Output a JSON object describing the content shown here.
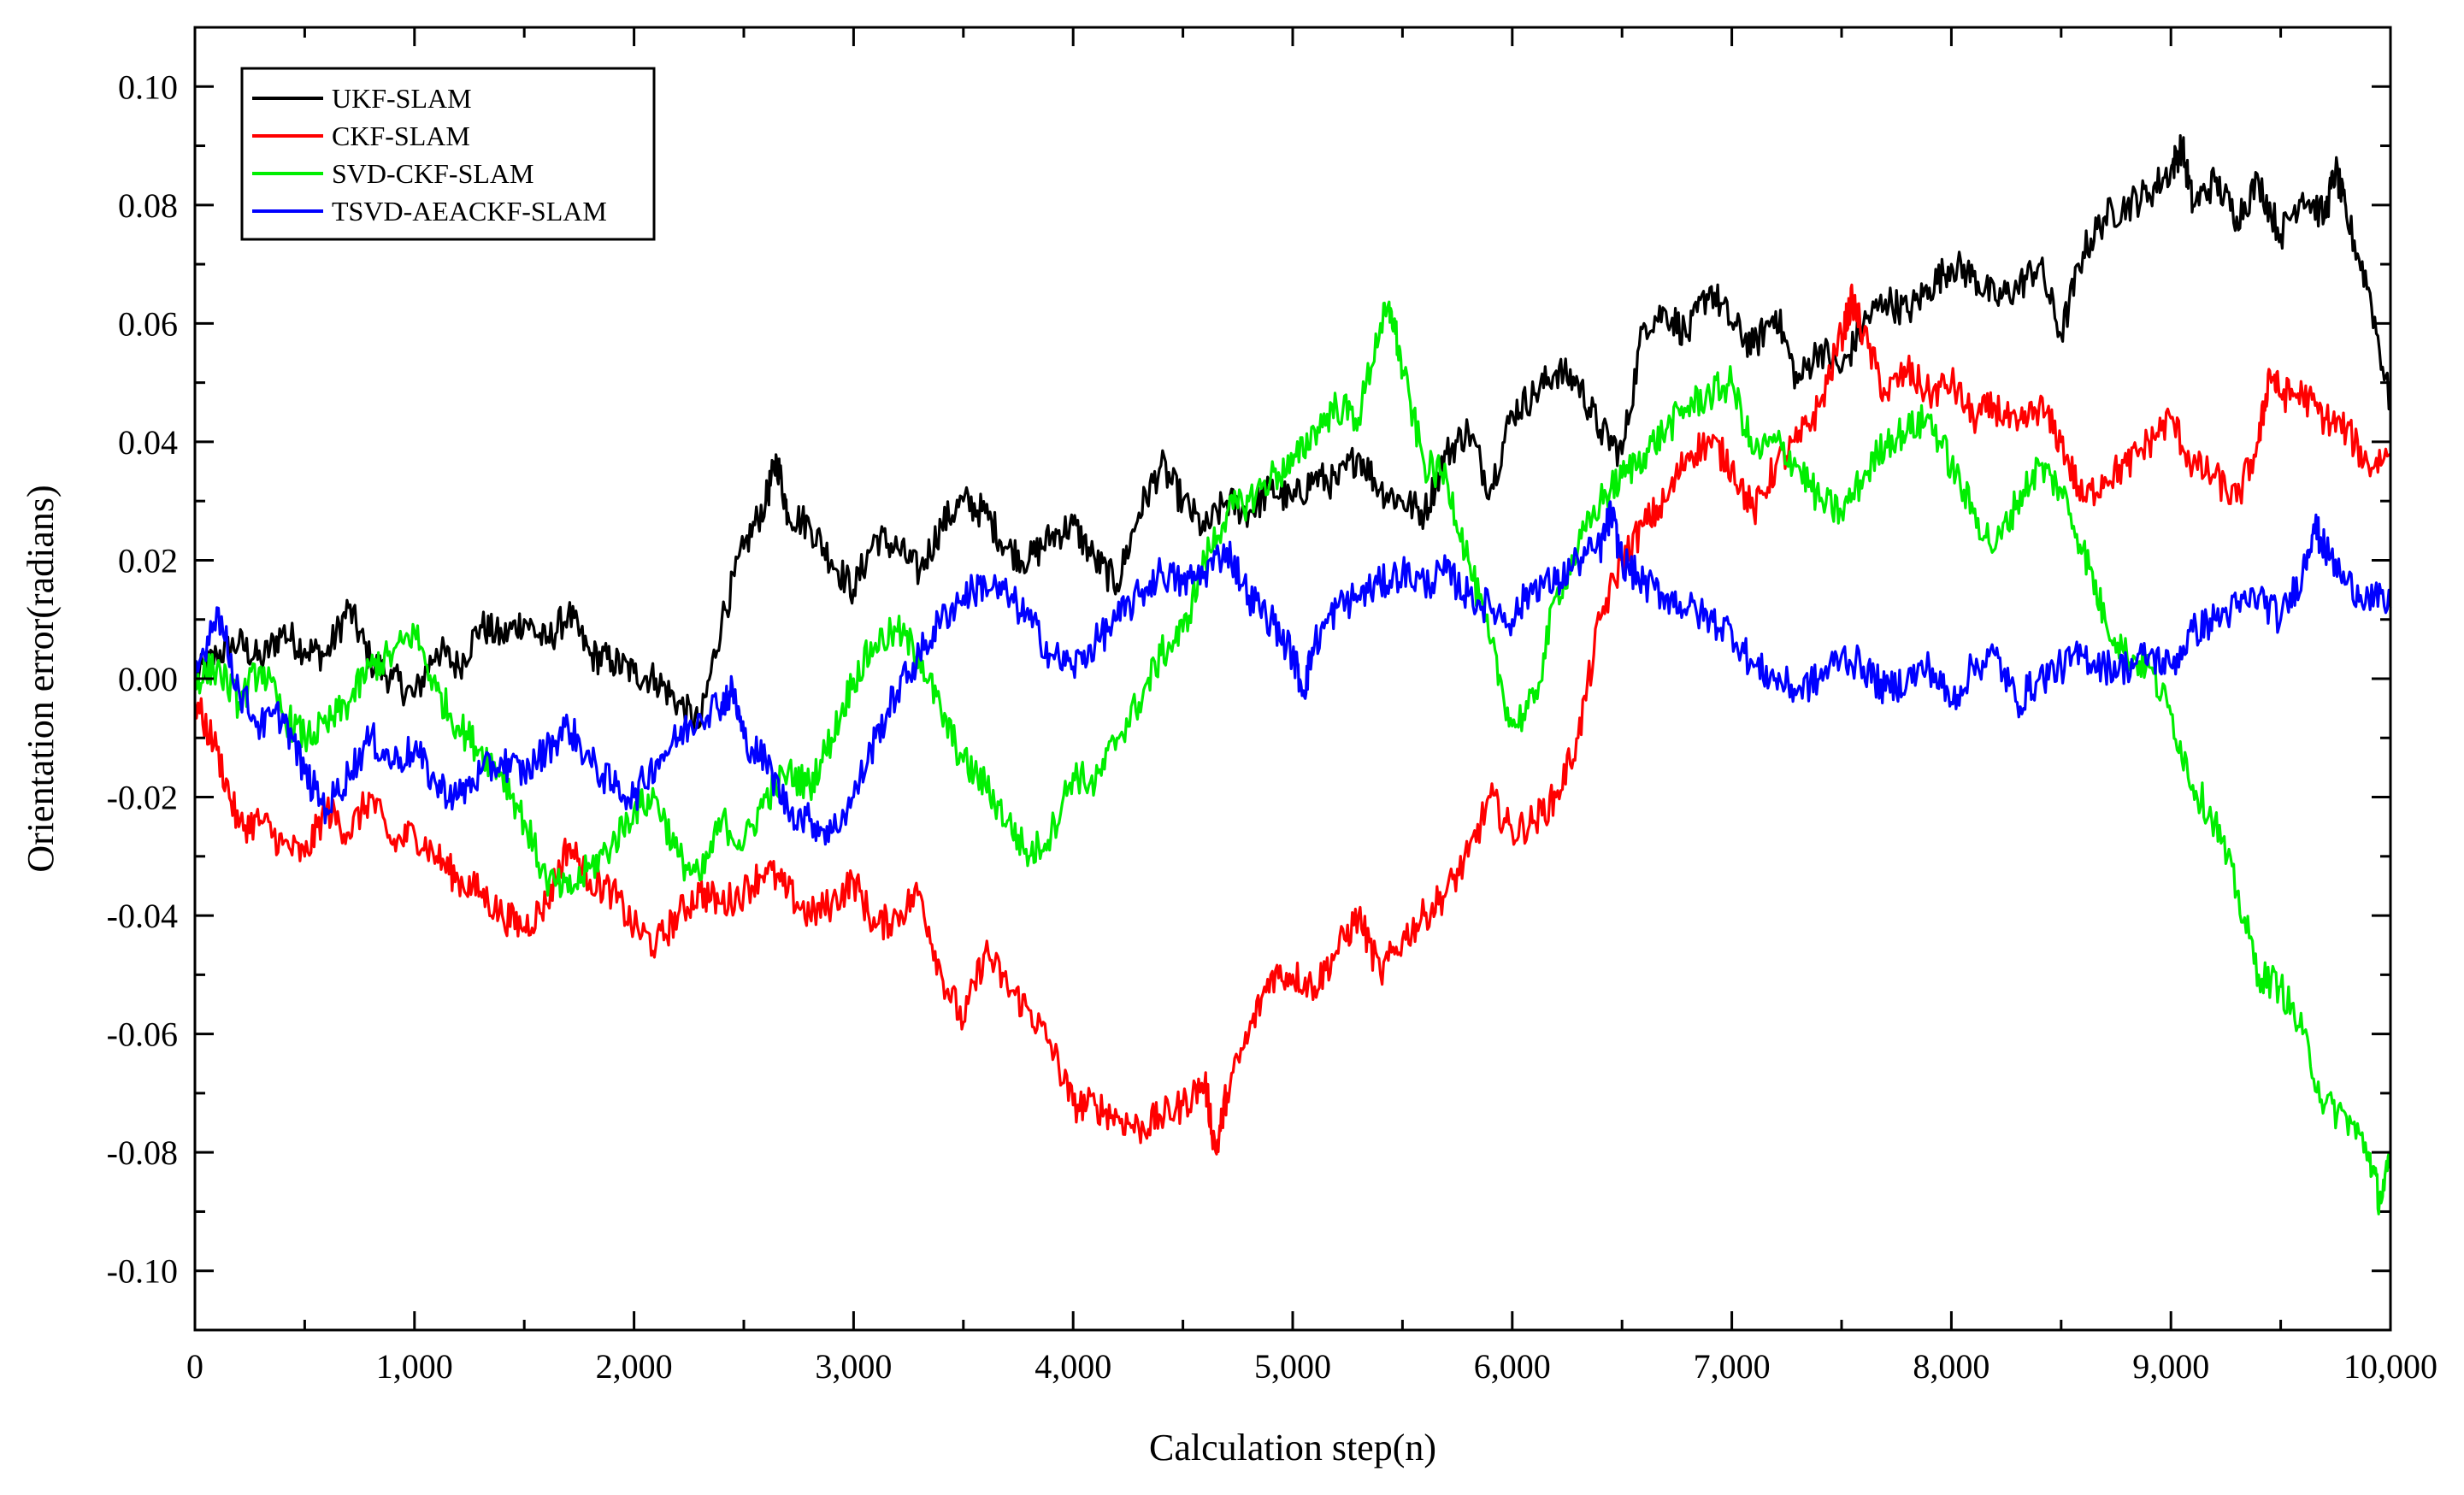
{
  "chart_data": {
    "type": "line",
    "title": "",
    "xlabel": "Calculation step(n)",
    "ylabel": "Orientation error(radians)",
    "xlim": [
      0,
      10000
    ],
    "ylim": [
      -0.11,
      0.11
    ],
    "xticks": [
      0,
      1000,
      2000,
      3000,
      4000,
      5000,
      6000,
      7000,
      8000,
      9000,
      10000
    ],
    "xtick_labels": [
      "0",
      "1,000",
      "2,000",
      "3,000",
      "4,000",
      "5,000",
      "6,000",
      "7,000",
      "8,000",
      "9,000",
      "10,000"
    ],
    "yticks": [
      -0.1,
      -0.08,
      -0.06,
      -0.04,
      -0.02,
      0.0,
      0.02,
      0.04,
      0.06,
      0.08,
      0.1
    ],
    "ytick_labels": [
      "-0.10",
      "-0.08",
      "-0.06",
      "-0.04",
      "-0.02",
      "0.00",
      "0.02",
      "0.04",
      "0.06",
      "0.08",
      "0.10"
    ],
    "grid": false,
    "legend_position": "top-left",
    "series": [
      {
        "name": "UKF-SLAM",
        "color": "#000000",
        "x": [
          0,
          100,
          200,
          300,
          400,
          500,
          600,
          700,
          800,
          900,
          1000,
          1100,
          1200,
          1300,
          1400,
          1500,
          1600,
          1700,
          1800,
          1900,
          2000,
          2100,
          2200,
          2300,
          2400,
          2500,
          2600,
          2650,
          2700,
          2800,
          2900,
          3000,
          3100,
          3200,
          3300,
          3400,
          3500,
          3600,
          3700,
          3800,
          3900,
          4000,
          4100,
          4200,
          4300,
          4400,
          4500,
          4600,
          4700,
          4800,
          4900,
          5000,
          5100,
          5200,
          5300,
          5400,
          5500,
          5600,
          5700,
          5800,
          5900,
          6000,
          6100,
          6200,
          6300,
          6400,
          6500,
          6600,
          6700,
          6800,
          6900,
          7000,
          7100,
          7200,
          7300,
          7400,
          7500,
          7600,
          7700,
          7800,
          7900,
          8000,
          8100,
          8200,
          8300,
          8400,
          8500,
          8600,
          8700,
          8800,
          8900,
          9000,
          9050,
          9100,
          9200,
          9300,
          9400,
          9500,
          9600,
          9700,
          9750,
          9800,
          9900,
          10000
        ],
        "values": [
          0.0,
          0.004,
          0.006,
          0.003,
          0.008,
          0.005,
          0.004,
          0.012,
          0.003,
          0.0,
          -0.003,
          0.005,
          0.002,
          0.009,
          0.007,
          0.01,
          0.006,
          0.011,
          0.004,
          0.003,
          0.001,
          0.0,
          -0.004,
          -0.008,
          0.01,
          0.022,
          0.03,
          0.037,
          0.028,
          0.026,
          0.02,
          0.015,
          0.024,
          0.022,
          0.018,
          0.026,
          0.03,
          0.028,
          0.022,
          0.02,
          0.024,
          0.026,
          0.02,
          0.016,
          0.028,
          0.036,
          0.03,
          0.025,
          0.03,
          0.028,
          0.032,
          0.03,
          0.034,
          0.033,
          0.038,
          0.032,
          0.03,
          0.028,
          0.038,
          0.042,
          0.032,
          0.045,
          0.048,
          0.052,
          0.05,
          0.042,
          0.038,
          0.06,
          0.062,
          0.058,
          0.066,
          0.06,
          0.056,
          0.062,
          0.05,
          0.056,
          0.052,
          0.06,
          0.064,
          0.062,
          0.066,
          0.07,
          0.068,
          0.064,
          0.066,
          0.07,
          0.058,
          0.072,
          0.078,
          0.08,
          0.082,
          0.086,
          0.09,
          0.08,
          0.084,
          0.078,
          0.084,
          0.075,
          0.082,
          0.078,
          0.086,
          0.078,
          0.066,
          0.046
        ]
      },
      {
        "name": "CKF-SLAM",
        "color": "#ff0000",
        "x": [
          0,
          100,
          200,
          300,
          400,
          500,
          600,
          700,
          800,
          900,
          1000,
          1100,
          1200,
          1300,
          1400,
          1500,
          1600,
          1700,
          1800,
          1900,
          2000,
          2100,
          2200,
          2300,
          2400,
          2500,
          2600,
          2700,
          2800,
          2900,
          3000,
          3100,
          3200,
          3300,
          3400,
          3500,
          3600,
          3700,
          3800,
          3900,
          4000,
          4100,
          4200,
          4300,
          4400,
          4500,
          4600,
          4650,
          4700,
          4800,
          4900,
          5000,
          5100,
          5200,
          5300,
          5400,
          5500,
          5600,
          5700,
          5800,
          5900,
          6000,
          6100,
          6200,
          6300,
          6400,
          6500,
          6600,
          6700,
          6800,
          6900,
          7000,
          7100,
          7200,
          7300,
          7400,
          7500,
          7550,
          7600,
          7700,
          7800,
          7900,
          8000,
          8100,
          8200,
          8300,
          8400,
          8500,
          8600,
          8700,
          8800,
          8900,
          9000,
          9100,
          9200,
          9300,
          9400,
          9450,
          9500,
          9600,
          9700,
          9800,
          9900,
          10000
        ],
        "values": [
          -0.004,
          -0.012,
          -0.025,
          -0.024,
          -0.028,
          -0.03,
          -0.022,
          -0.026,
          -0.02,
          -0.028,
          -0.026,
          -0.03,
          -0.034,
          -0.036,
          -0.04,
          -0.042,
          -0.038,
          -0.028,
          -0.034,
          -0.036,
          -0.042,
          -0.045,
          -0.04,
          -0.036,
          -0.038,
          -0.036,
          -0.032,
          -0.036,
          -0.04,
          -0.038,
          -0.034,
          -0.042,
          -0.04,
          -0.036,
          -0.05,
          -0.058,
          -0.046,
          -0.052,
          -0.056,
          -0.062,
          -0.072,
          -0.072,
          -0.074,
          -0.076,
          -0.074,
          -0.072,
          -0.068,
          -0.08,
          -0.07,
          -0.06,
          -0.05,
          -0.05,
          -0.052,
          -0.046,
          -0.04,
          -0.05,
          -0.044,
          -0.04,
          -0.036,
          -0.03,
          -0.02,
          -0.026,
          -0.024,
          -0.02,
          -0.01,
          0.01,
          0.02,
          0.026,
          0.03,
          0.038,
          0.04,
          0.036,
          0.028,
          0.036,
          0.04,
          0.046,
          0.058,
          0.064,
          0.058,
          0.048,
          0.052,
          0.048,
          0.05,
          0.044,
          0.046,
          0.042,
          0.046,
          0.04,
          0.03,
          0.034,
          0.036,
          0.04,
          0.044,
          0.036,
          0.034,
          0.03,
          0.04,
          0.052,
          0.048,
          0.048,
          0.044,
          0.042,
          0.036,
          0.038
        ]
      },
      {
        "name": "SVD-CKF-SLAM",
        "color": "#00ee00",
        "x": [
          0,
          100,
          200,
          300,
          400,
          500,
          600,
          700,
          800,
          900,
          1000,
          1100,
          1200,
          1300,
          1400,
          1500,
          1600,
          1700,
          1800,
          1900,
          2000,
          2100,
          2200,
          2300,
          2400,
          2500,
          2600,
          2700,
          2800,
          2900,
          3000,
          3100,
          3200,
          3300,
          3400,
          3500,
          3600,
          3700,
          3800,
          3900,
          4000,
          4100,
          4200,
          4300,
          4400,
          4500,
          4600,
          4700,
          4800,
          4900,
          5000,
          5100,
          5200,
          5300,
          5400,
          5450,
          5500,
          5600,
          5700,
          5800,
          5900,
          6000,
          6100,
          6200,
          6300,
          6400,
          6500,
          6600,
          6700,
          6800,
          6900,
          7000,
          7100,
          7200,
          7300,
          7400,
          7500,
          7600,
          7700,
          7800,
          7900,
          8000,
          8100,
          8200,
          8300,
          8400,
          8500,
          8600,
          8700,
          8800,
          8900,
          9000,
          9100,
          9200,
          9300,
          9400,
          9500,
          9600,
          9700,
          9800,
          9900,
          9950,
          10000
        ],
        "values": [
          0.0,
          0.002,
          -0.004,
          0.002,
          -0.006,
          -0.01,
          -0.008,
          -0.004,
          0.002,
          0.004,
          0.008,
          -0.002,
          -0.008,
          -0.012,
          -0.016,
          -0.024,
          -0.034,
          -0.036,
          -0.032,
          -0.028,
          -0.022,
          -0.02,
          -0.03,
          -0.034,
          -0.024,
          -0.028,
          -0.02,
          -0.016,
          -0.018,
          -0.01,
          0.0,
          0.006,
          0.008,
          0.004,
          -0.006,
          -0.014,
          -0.018,
          -0.024,
          -0.03,
          -0.026,
          -0.016,
          -0.018,
          -0.01,
          -0.004,
          0.004,
          0.008,
          0.02,
          0.028,
          0.03,
          0.034,
          0.036,
          0.042,
          0.046,
          0.044,
          0.06,
          0.062,
          0.052,
          0.036,
          0.034,
          0.02,
          0.006,
          -0.008,
          -0.004,
          0.014,
          0.022,
          0.03,
          0.034,
          0.038,
          0.042,
          0.046,
          0.048,
          0.05,
          0.038,
          0.04,
          0.036,
          0.03,
          0.028,
          0.034,
          0.04,
          0.042,
          0.044,
          0.036,
          0.028,
          0.022,
          0.03,
          0.036,
          0.032,
          0.022,
          0.01,
          0.004,
          0.002,
          -0.006,
          -0.018,
          -0.024,
          -0.036,
          -0.05,
          -0.052,
          -0.06,
          -0.072,
          -0.074,
          -0.08,
          -0.088,
          -0.082
        ]
      },
      {
        "name": "TSVD-AEACKF-SLAM",
        "color": "#0000ff",
        "x": [
          0,
          100,
          200,
          300,
          400,
          500,
          600,
          700,
          800,
          900,
          1000,
          1100,
          1200,
          1300,
          1400,
          1500,
          1600,
          1700,
          1800,
          1900,
          2000,
          2100,
          2200,
          2300,
          2400,
          2450,
          2500,
          2600,
          2700,
          2800,
          2900,
          3000,
          3100,
          3200,
          3300,
          3400,
          3500,
          3600,
          3700,
          3800,
          3900,
          4000,
          4100,
          4200,
          4300,
          4400,
          4500,
          4600,
          4700,
          4800,
          4900,
          5000,
          5050,
          5100,
          5200,
          5300,
          5400,
          5500,
          5600,
          5700,
          5800,
          5900,
          6000,
          6100,
          6200,
          6300,
          6400,
          6450,
          6500,
          6600,
          6700,
          6800,
          6900,
          7000,
          7100,
          7200,
          7300,
          7400,
          7500,
          7600,
          7700,
          7800,
          7900,
          8000,
          8100,
          8200,
          8300,
          8400,
          8500,
          8600,
          8700,
          8800,
          8900,
          9000,
          9100,
          9200,
          9300,
          9400,
          9500,
          9600,
          9650,
          9700,
          9800,
          9900,
          10000
        ],
        "values": [
          0.0,
          0.012,
          -0.002,
          -0.008,
          -0.006,
          -0.016,
          -0.022,
          -0.016,
          -0.01,
          -0.014,
          -0.012,
          -0.018,
          -0.02,
          -0.016,
          -0.014,
          -0.016,
          -0.012,
          -0.008,
          -0.014,
          -0.018,
          -0.02,
          -0.014,
          -0.01,
          -0.006,
          -0.004,
          -0.002,
          -0.01,
          -0.014,
          -0.022,
          -0.024,
          -0.026,
          -0.02,
          -0.01,
          -0.002,
          0.004,
          0.01,
          0.014,
          0.016,
          0.014,
          0.01,
          0.004,
          0.002,
          0.006,
          0.01,
          0.014,
          0.018,
          0.016,
          0.018,
          0.022,
          0.014,
          0.01,
          0.004,
          -0.002,
          0.006,
          0.012,
          0.014,
          0.016,
          0.018,
          0.016,
          0.018,
          0.014,
          0.012,
          0.01,
          0.016,
          0.016,
          0.02,
          0.022,
          0.028,
          0.02,
          0.016,
          0.014,
          0.012,
          0.01,
          0.008,
          0.002,
          0.0,
          -0.002,
          0.0,
          0.004,
          0.002,
          -0.002,
          0.0,
          0.002,
          -0.004,
          0.002,
          0.004,
          -0.004,
          0.0,
          0.002,
          0.004,
          0.002,
          0.002,
          0.004,
          0.002,
          0.008,
          0.01,
          0.012,
          0.014,
          0.01,
          0.018,
          0.026,
          0.022,
          0.016,
          0.014,
          0.012
        ]
      }
    ]
  }
}
